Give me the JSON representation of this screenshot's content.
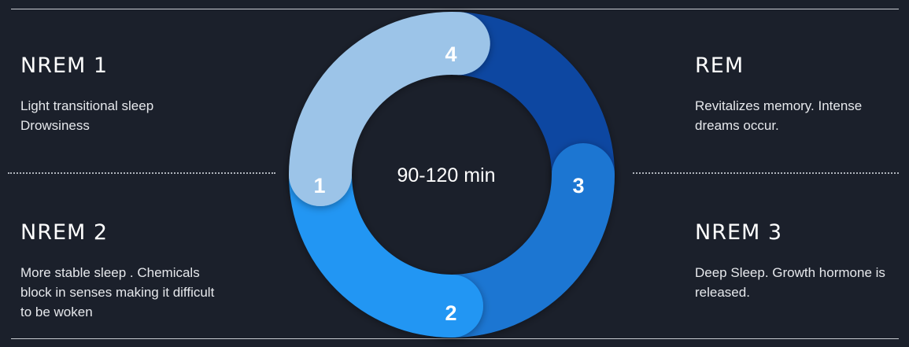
{
  "center_label": "90-120 min",
  "stages": [
    {
      "number": "1",
      "title": "NREM 1",
      "description": "Light transitional sleep\nDrowsiness",
      "color": "#9cc4e8"
    },
    {
      "number": "2",
      "title": "NREM 2",
      "description": "More stable sleep . Chemicals\nblock in senses making it difficult\nto be woken",
      "color": "#2196f3"
    },
    {
      "number": "3",
      "title": "NREM 3",
      "description": "Deep Sleep. Growth hormone is\nreleased.",
      "color": "#1c76d2"
    },
    {
      "number": "4",
      "title": "REM",
      "description": "Revitalizes memory. Intense\ndreams occur.",
      "color": "#0d47a1"
    }
  ],
  "colors": {
    "background": "#1b202b"
  }
}
